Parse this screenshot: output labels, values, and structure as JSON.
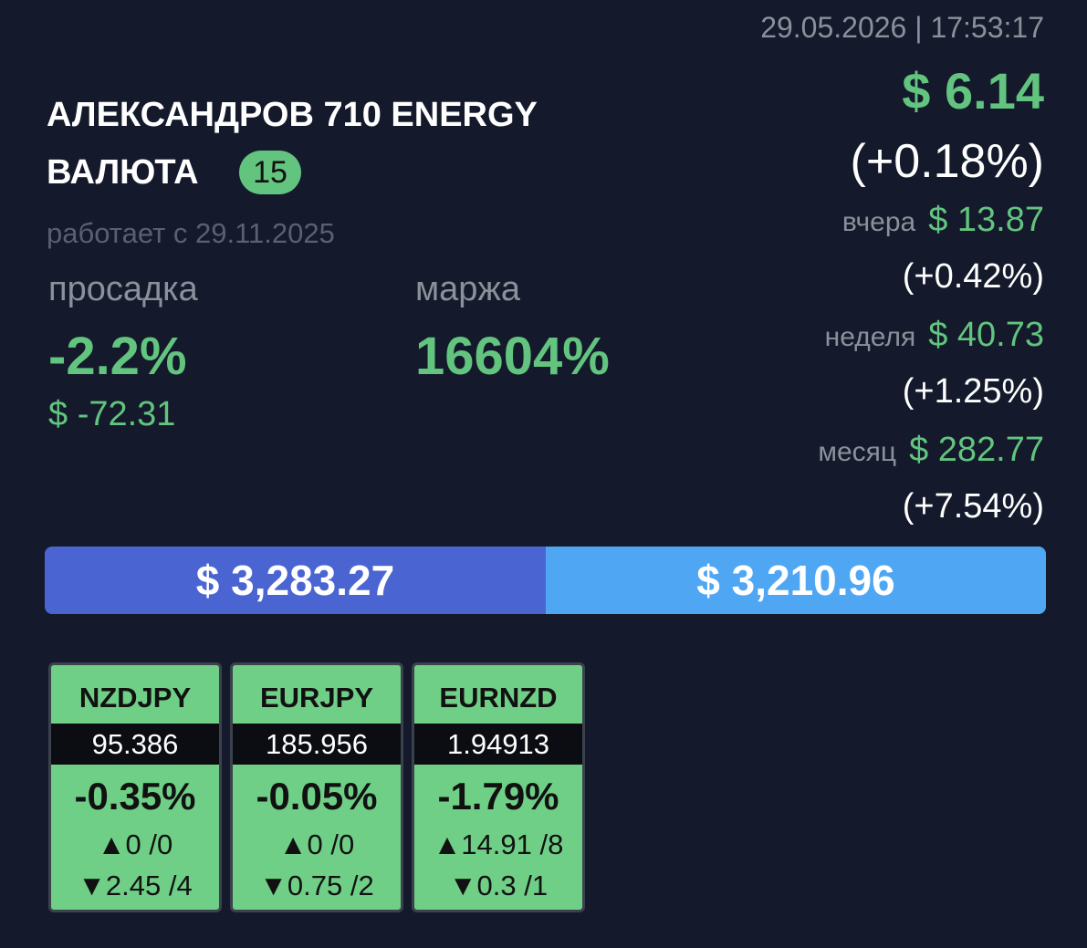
{
  "header": {
    "timestamp": "29.05.2026 | 17:53:17",
    "title_line1": "АЛЕКСАНДРОВ 710 ENERGY",
    "title_line2": "ВАЛЮТА",
    "badge": "15",
    "since": "работает с 29.11.2025"
  },
  "profit": {
    "amount": "$ 6.14",
    "percent": "(+0.18%)",
    "periods": [
      {
        "label": "вчера",
        "amount": "$ 13.87",
        "percent": "(+0.42%)"
      },
      {
        "label": "неделя",
        "amount": "$ 40.73",
        "percent": "(+1.25%)"
      },
      {
        "label": "месяц",
        "amount": "$ 282.77",
        "percent": "(+7.54%)"
      }
    ]
  },
  "drawdown": {
    "label": "просадка",
    "percent": "-2.2%",
    "amount": "$ -72.31"
  },
  "margin": {
    "label": "маржа",
    "percent": "16604%"
  },
  "balance": {
    "left": "$ 3,283.27",
    "right": "$ 3,210.96"
  },
  "pairs": [
    {
      "name": "NZDJPY",
      "price": "95.386",
      "change": "-0.35%",
      "up": "▲0 /0",
      "down": "▼2.45 /4"
    },
    {
      "name": "EURJPY",
      "price": "185.956",
      "change": "-0.05%",
      "up": "▲0 /0",
      "down": "▼0.75 /2"
    },
    {
      "name": "EURNZD",
      "price": "1.94913",
      "change": "-1.79%",
      "up": "▲14.91 /8",
      "down": "▼0.3 /1"
    }
  ]
}
